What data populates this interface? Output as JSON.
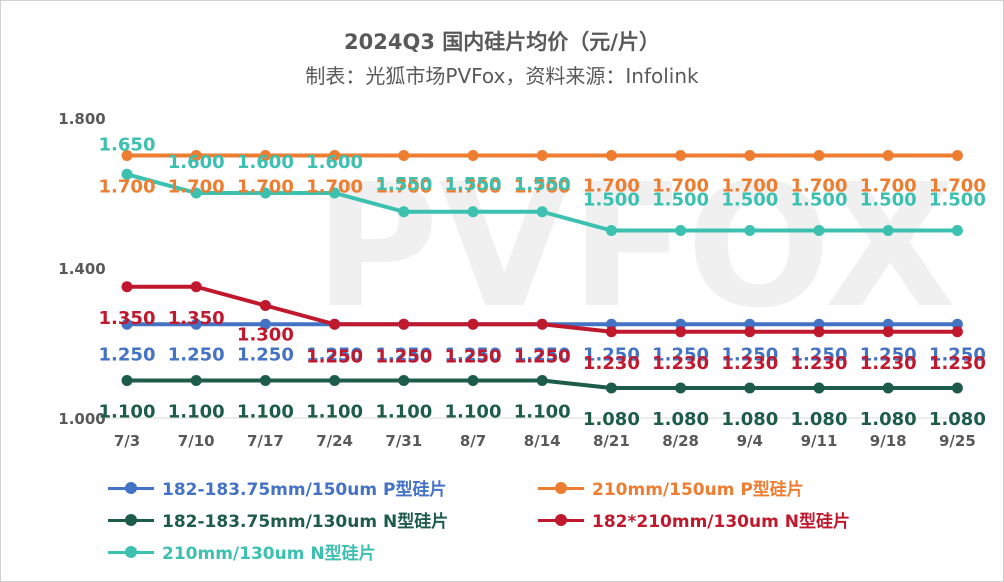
{
  "title": "2024Q3 国内硅片均价（元/片）",
  "subtitle": "制表：光狐市场PVFox，资料来源：Infolink",
  "watermark": "PVFOX",
  "chart_data": {
    "type": "line",
    "categories": [
      "7/3",
      "7/10",
      "7/17",
      "7/24",
      "7/31",
      "8/7",
      "8/14",
      "8/21",
      "8/28",
      "9/4",
      "9/11",
      "9/18",
      "9/25"
    ],
    "ylim": [
      1.0,
      1.8
    ],
    "yticks": [
      "1.000",
      "1.400",
      "1.800"
    ],
    "grid": false,
    "legend_position": "bottom",
    "series": [
      {
        "name": "182-183.75mm/150um P型硅片",
        "color": "#4472C4",
        "values": [
          1.25,
          1.25,
          1.25,
          1.25,
          1.25,
          1.25,
          1.25,
          1.25,
          1.25,
          1.25,
          1.25,
          1.25,
          1.25
        ],
        "labels": [
          "1.250",
          "1.250",
          "1.250",
          "1.250",
          "1.250",
          "1.250",
          "1.250",
          "1.250",
          "1.250",
          "1.250",
          "1.250",
          "1.250",
          "1.250"
        ]
      },
      {
        "name": "210mm/150um P型硅片",
        "color": "#ED7D31",
        "values": [
          1.7,
          1.7,
          1.7,
          1.7,
          1.7,
          1.7,
          1.7,
          1.7,
          1.7,
          1.7,
          1.7,
          1.7,
          1.7
        ],
        "labels": [
          "1.700",
          "1.700",
          "1.700",
          "1.700",
          "1.700",
          "1.700",
          "1.700",
          "1.700",
          "1.700",
          "1.700",
          "1.700",
          "1.700",
          "1.700"
        ]
      },
      {
        "name": "182-183.75mm/130um N型硅片",
        "color": "#1E5C4A",
        "values": [
          1.1,
          1.1,
          1.1,
          1.1,
          1.1,
          1.1,
          1.1,
          1.08,
          1.08,
          1.08,
          1.08,
          1.08,
          1.08
        ],
        "labels": [
          "1.100",
          "1.100",
          "1.100",
          "1.100",
          "1.100",
          "1.100",
          "1.100",
          "1.080",
          "1.080",
          "1.080",
          "1.080",
          "1.080",
          "1.080"
        ]
      },
      {
        "name": "182*210mm/130um N型硅片",
        "color": "#C0192E",
        "values": [
          1.35,
          1.35,
          1.3,
          1.25,
          1.25,
          1.25,
          1.25,
          1.23,
          1.23,
          1.23,
          1.23,
          1.23,
          1.23
        ],
        "labels": [
          "1.350",
          "1.350",
          "1.300",
          "1.250",
          "1.250",
          "1.250",
          "1.250",
          "1.230",
          "1.230",
          "1.230",
          "1.230",
          "1.230",
          "1.230"
        ]
      },
      {
        "name": "210mm/130um N型硅片",
        "color": "#3CC0B0",
        "values": [
          1.65,
          1.6,
          1.6,
          1.6,
          1.55,
          1.55,
          1.55,
          1.5,
          1.5,
          1.5,
          1.5,
          1.5,
          1.5
        ],
        "labels": [
          "1.650",
          "1.600",
          "1.600",
          "1.600",
          "1.550",
          "1.550",
          "1.550",
          "1.500",
          "1.500",
          "1.500",
          "1.500",
          "1.500",
          "1.500"
        ]
      }
    ]
  }
}
